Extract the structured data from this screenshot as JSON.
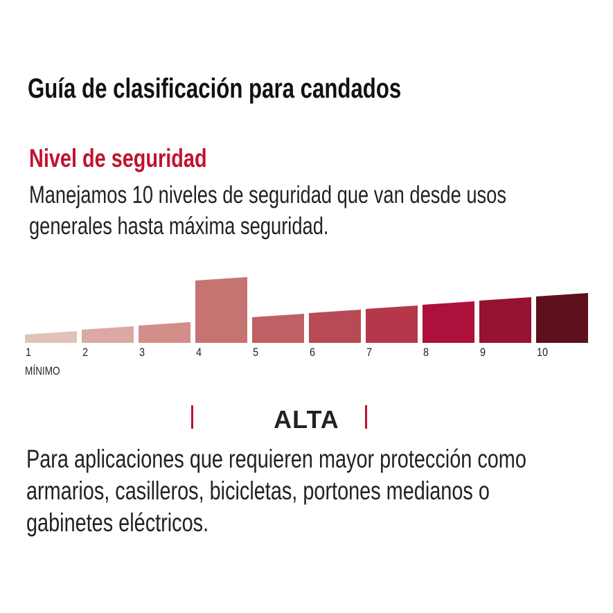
{
  "title": "Guía de clasificación para candados",
  "subtitle": "Nivel de seguridad",
  "description": [
    "Manejamos 10 niveles de seguridad que van desde usos",
    "generales hasta máxima seguridad."
  ],
  "scale": {
    "levels": [
      {
        "label": "1",
        "color": "#e2c2b8"
      },
      {
        "label": "2",
        "color": "#dba8a3"
      },
      {
        "label": "3",
        "color": "#d38e89"
      },
      {
        "label": "4",
        "color": "#c57472"
      },
      {
        "label": "5",
        "color": "#be6064"
      },
      {
        "label": "6",
        "color": "#b84a55"
      },
      {
        "label": "7",
        "color": "#b4384a"
      },
      {
        "label": "8",
        "color": "#ad103a"
      },
      {
        "label": "9",
        "color": "#961431"
      },
      {
        "label": "10",
        "color": "#5e111c"
      }
    ],
    "min_label": "MÍNIMO",
    "highlighted_level": 4
  },
  "category": "ALTA",
  "accent_color": "#c0132f",
  "body": [
    "Para aplicaciones que requieren mayor protección como",
    "armarios, casilleros, bicicletas, portones medianos o",
    "gabinetes eléctricos."
  ]
}
